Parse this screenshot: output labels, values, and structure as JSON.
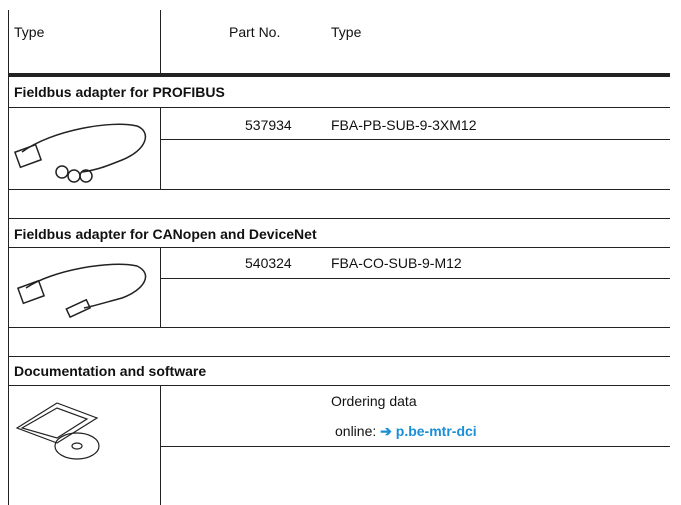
{
  "header": {
    "col1": "Type",
    "col2": "Part No.",
    "col3": "Type"
  },
  "sections": [
    {
      "title": "Fieldbus adapter for PROFIBUS",
      "part_no": "537934",
      "type": "FBA-PB-SUB-9-3XM12"
    },
    {
      "title": "Fieldbus adapter for CANopen and DeviceNet",
      "part_no": "540324",
      "type": "FBA-CO-SUB-9-M12"
    },
    {
      "title": "Documentation and software",
      "text": "Ordering data",
      "online": "online:",
      "arrow": "➔",
      "link": "p.be-mtr-dci"
    }
  ]
}
